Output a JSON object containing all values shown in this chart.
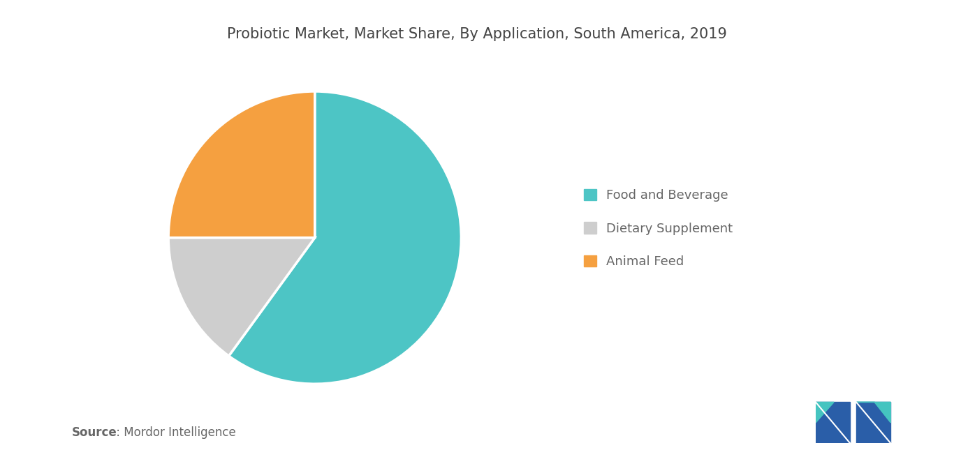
{
  "title": "Probiotic Market, Market Share, By Application, South America, 2019",
  "slices": [
    {
      "label": "Food and Beverage",
      "value": 60,
      "color": "#4DC5C5"
    },
    {
      "label": "Dietary Supplement",
      "value": 15,
      "color": "#CECECE"
    },
    {
      "label": "Animal Feed",
      "value": 25,
      "color": "#F5A040"
    }
  ],
  "startangle": 90,
  "background_color": "#FFFFFF",
  "title_fontsize": 15,
  "legend_fontsize": 13,
  "source_bold": "Source",
  "source_normal": " : Mordor Intelligence",
  "source_fontsize": 12,
  "source_color": "#666666",
  "title_color": "#444444",
  "legend_text_color": "#666666"
}
